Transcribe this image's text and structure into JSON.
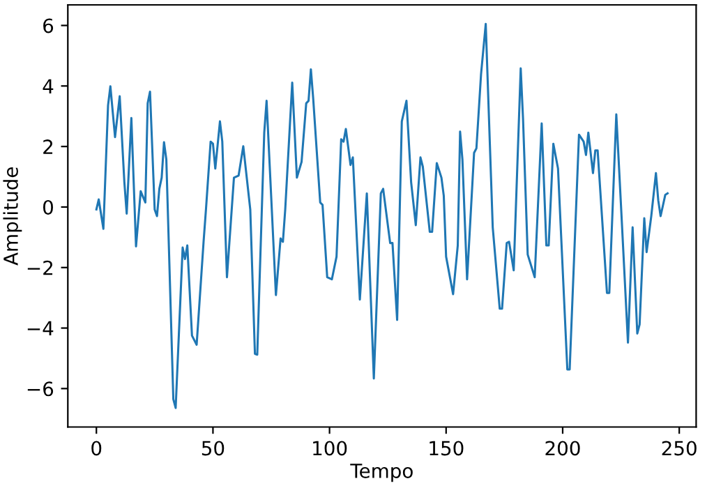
{
  "chart_data": {
    "type": "line",
    "xlabel": "Tempo",
    "ylabel": "Amplitude",
    "xlim": [
      -12.25,
      257.25
    ],
    "ylim": [
      -7.27,
      6.68
    ],
    "xticks": [
      0,
      50,
      100,
      150,
      200,
      250
    ],
    "yticks": [
      -6,
      -4,
      -2,
      0,
      2,
      4,
      6
    ],
    "grid": false,
    "legend": false,
    "series": [
      {
        "color": "#1f77b4",
        "x": [
          0,
          1,
          3,
          5,
          6,
          8,
          10,
          12,
          13,
          15,
          17,
          19,
          21,
          22,
          23,
          25,
          26,
          27,
          28,
          29,
          30,
          33,
          34,
          37,
          38,
          39,
          41,
          43,
          46,
          47,
          49,
          50,
          51,
          53,
          54,
          56,
          59,
          61,
          63,
          66,
          68,
          69,
          72,
          73,
          77,
          79,
          80,
          81,
          84,
          86,
          88,
          90,
          91,
          92,
          93,
          96,
          97,
          99,
          101,
          103,
          105,
          106,
          107,
          109,
          110,
          113,
          116,
          119,
          122,
          123,
          126,
          127,
          129,
          131,
          133,
          135,
          137,
          139,
          140,
          143,
          144,
          146,
          148,
          149,
          150,
          153,
          155,
          156,
          157,
          159,
          162,
          163,
          165,
          167,
          170,
          173,
          174,
          176,
          177,
          179,
          182,
          183,
          185,
          188,
          191,
          193,
          194,
          196,
          198,
          202,
          203,
          207,
          209,
          210,
          211,
          213,
          214,
          215,
          219,
          220,
          223,
          225,
          228,
          230,
          232,
          233,
          235,
          236,
          238,
          240,
          241,
          242,
          244,
          245
        ],
        "values": [
          -0.08,
          0.25,
          -0.72,
          3.36,
          3.99,
          2.31,
          3.66,
          0.82,
          -0.22,
          2.94,
          -1.3,
          0.52,
          0.15,
          3.43,
          3.81,
          -0.08,
          -0.3,
          0.6,
          0.97,
          2.14,
          1.57,
          -6.35,
          -6.64,
          -1.34,
          -1.72,
          -1.27,
          -4.25,
          -4.55,
          -1.12,
          -0.08,
          2.16,
          2.09,
          1.27,
          2.83,
          2.16,
          -2.32,
          0.97,
          1.04,
          2.01,
          -0.08,
          -4.85,
          -4.88,
          2.46,
          3.51,
          -2.91,
          -1.04,
          -1.15,
          -0.08,
          4.11,
          0.97,
          1.49,
          3.43,
          3.51,
          4.55,
          3.58,
          0.15,
          0.07,
          -2.32,
          -2.39,
          -1.64,
          2.24,
          2.16,
          2.58,
          1.39,
          1.64,
          -3.06,
          0.45,
          -5.67,
          0.45,
          0.6,
          -1.19,
          -1.19,
          -3.73,
          2.83,
          3.51,
          0.82,
          -0.6,
          1.64,
          1.34,
          -0.82,
          -0.82,
          1.45,
          0.97,
          0.37,
          -1.64,
          -2.88,
          -1.27,
          2.49,
          1.57,
          -2.39,
          1.79,
          1.94,
          4.4,
          6.05,
          -0.67,
          -3.36,
          -3.36,
          -1.19,
          -1.15,
          -2.09,
          4.58,
          2.91,
          -1.57,
          -2.32,
          2.76,
          -1.27,
          -1.27,
          2.09,
          1.27,
          -5.37,
          -5.37,
          2.39,
          2.16,
          1.72,
          2.46,
          1.12,
          1.87,
          1.87,
          -2.84,
          -2.84,
          3.06,
          0.07,
          -4.48,
          -0.67,
          -4.18,
          -3.88,
          -0.37,
          -1.49,
          -0.3,
          1.12,
          0.22,
          -0.3,
          0.4,
          0.45
        ]
      }
    ]
  }
}
